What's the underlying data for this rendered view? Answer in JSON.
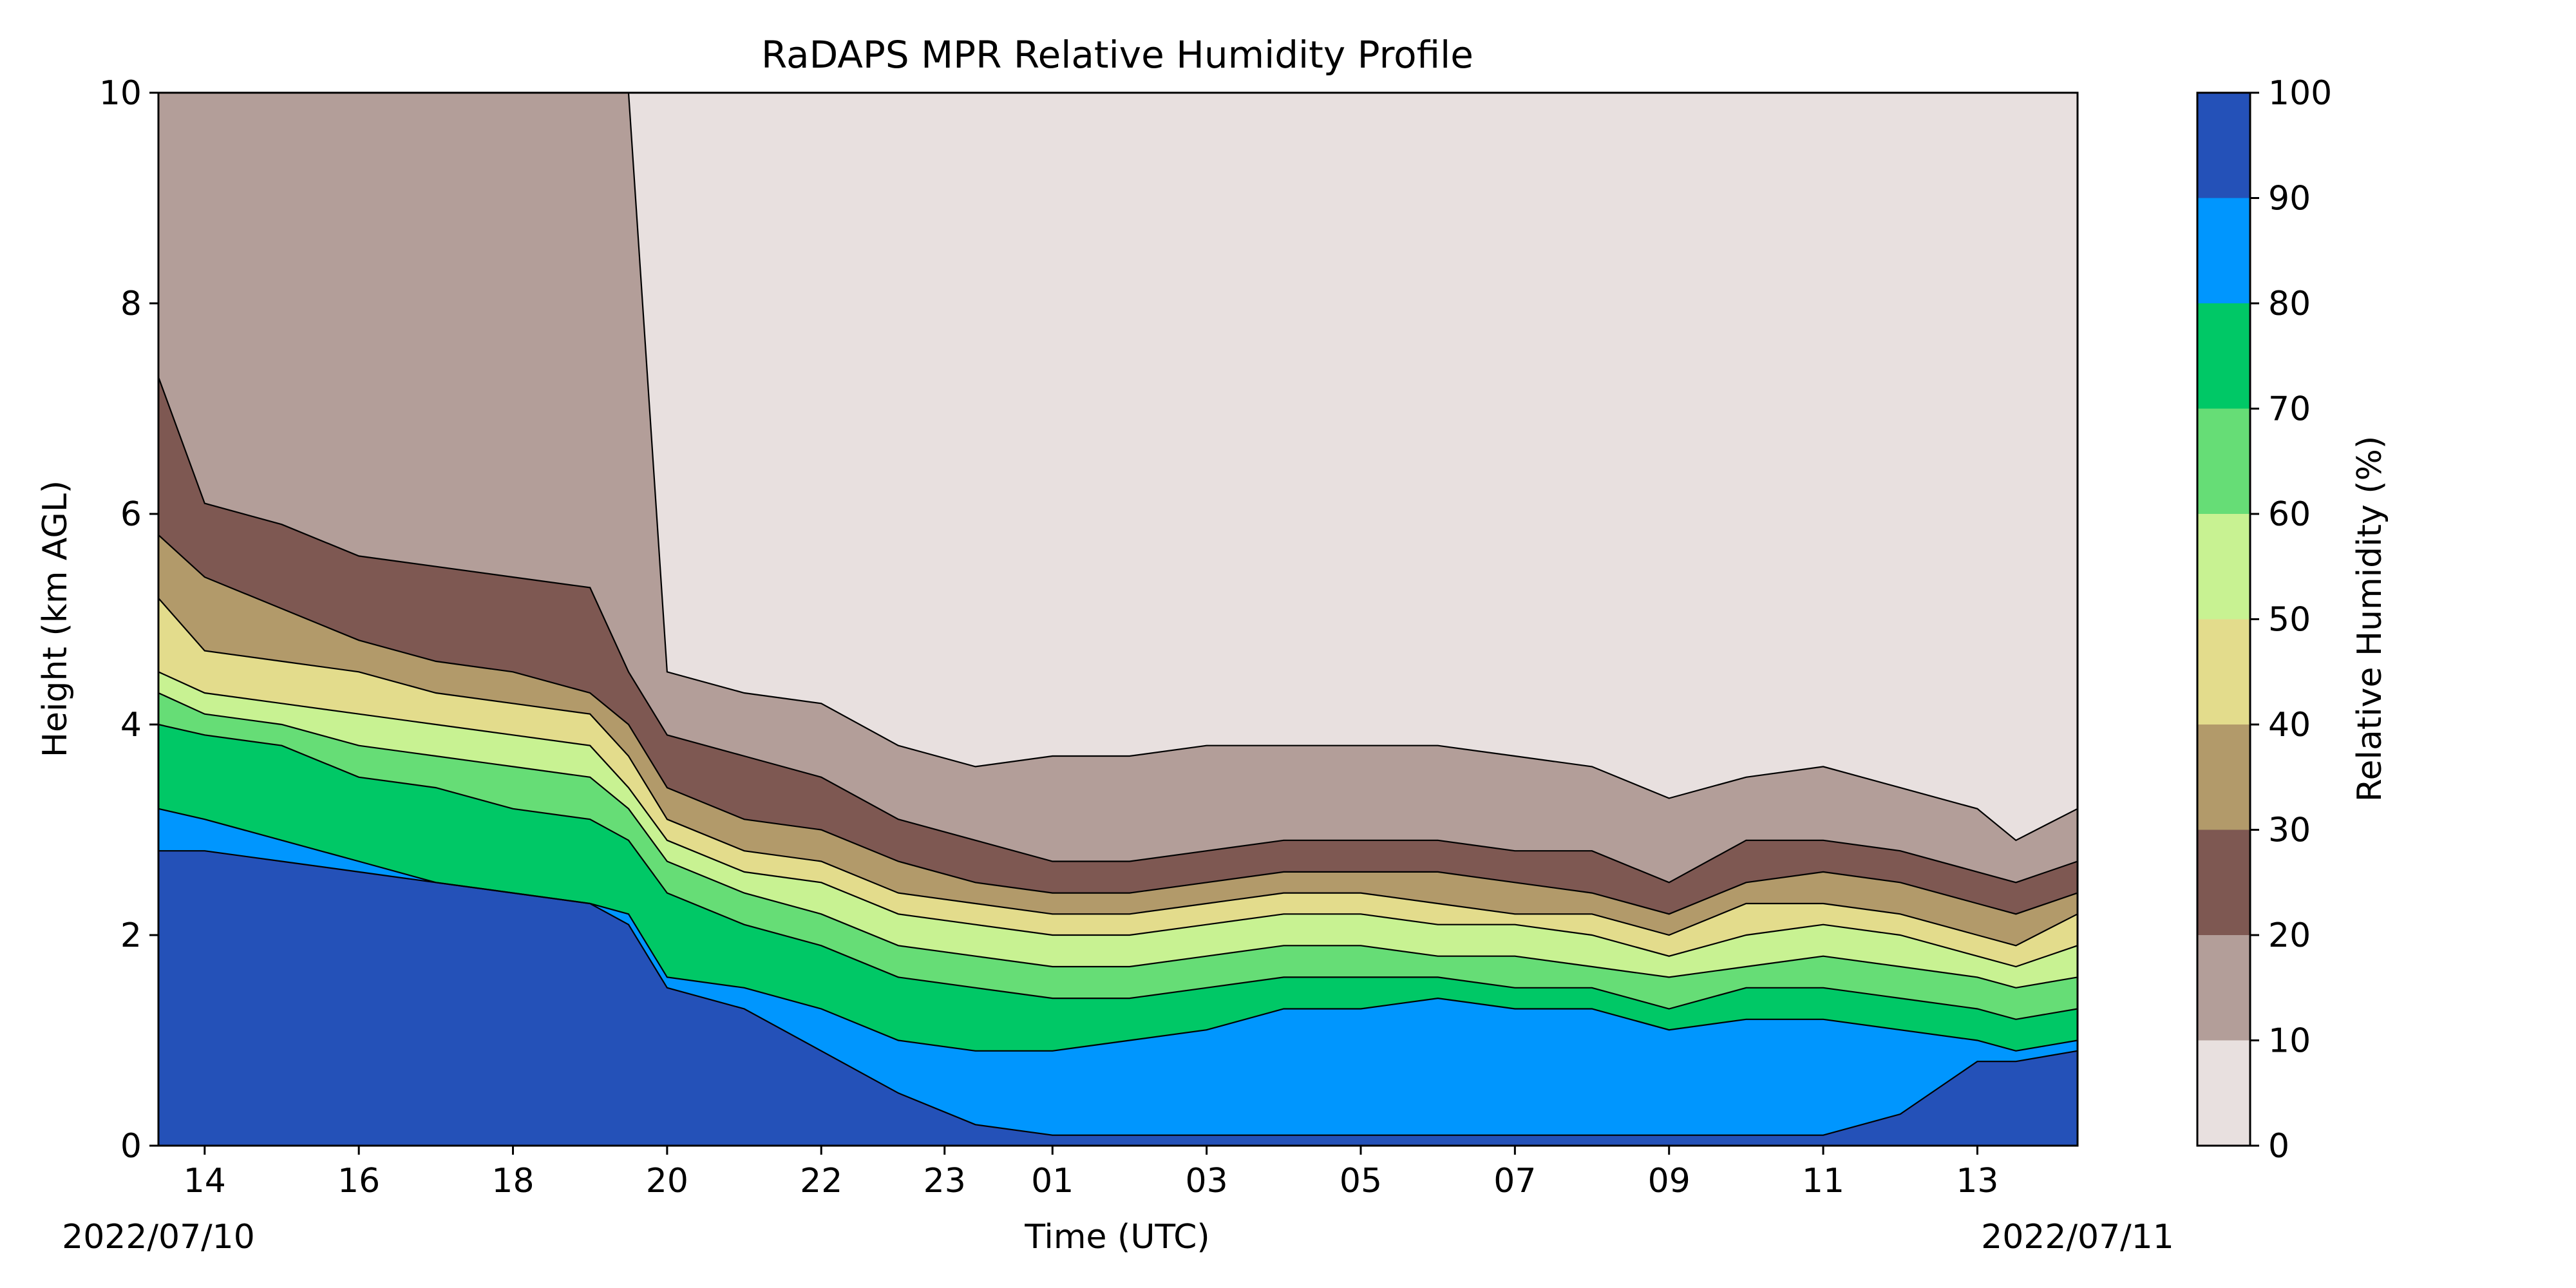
{
  "chart_data": {
    "type": "heatmap",
    "subtype": "filled-contour",
    "title": "RaDAPS MPR Relative Humidity Profile",
    "xlabel": "Time (UTC)",
    "ylabel": "Height (km AGL)",
    "ylim": [
      0,
      10
    ],
    "y_ticks": [
      "0",
      "2",
      "4",
      "6",
      "8",
      "10"
    ],
    "x_tick_labels": [
      "14",
      "16",
      "18",
      "20",
      "22",
      "23",
      "01",
      "03",
      "05",
      "07",
      "09",
      "11",
      "13"
    ],
    "x_tick_hours": [
      14,
      16,
      18,
      20,
      22,
      23.6,
      25,
      27,
      29,
      31,
      33,
      35,
      37
    ],
    "x_range_hours": [
      13.4,
      38.3
    ],
    "start_date_label": "2022/07/10",
    "end_date_label": "2022/07/11",
    "colorbar": {
      "label": "Relative Humidity (%)",
      "levels": [
        0,
        10,
        20,
        30,
        40,
        50,
        60,
        70,
        80,
        90,
        100
      ],
      "tick_labels": [
        "0",
        "10",
        "20",
        "30",
        "40",
        "50",
        "60",
        "70",
        "80",
        "90",
        "100"
      ],
      "colors": [
        "#e8e0df",
        "#b39e99",
        "#7e5852",
        "#b29a6a",
        "#e3dc8c",
        "#c8f292",
        "#66dd76",
        "#00c866",
        "#0096fe",
        "#2451b8"
      ]
    },
    "grid": false,
    "contour_times": [
      13.4,
      14.0,
      15.0,
      16.0,
      17.0,
      18.0,
      19.0,
      19.5,
      20.0,
      21.0,
      22.0,
      23.0,
      24.0,
      25.0,
      26.0,
      27.0,
      28.0,
      29.0,
      30.0,
      31.0,
      32.0,
      33.0,
      34.0,
      35.0,
      36.0,
      37.0,
      37.5,
      38.3
    ],
    "contour_heights_km": [
      {
        "level": 10,
        "values": [
          10,
          10,
          10,
          10,
          10,
          10,
          10,
          10,
          4.5,
          4.3,
          4.2,
          3.8,
          3.6,
          3.7,
          3.7,
          3.8,
          3.8,
          3.8,
          3.8,
          3.7,
          3.6,
          3.3,
          3.5,
          3.6,
          3.4,
          3.2,
          2.9,
          3.2
        ]
      },
      {
        "level": 20,
        "values": [
          7.3,
          6.1,
          5.9,
          5.6,
          5.5,
          5.4,
          5.3,
          4.5,
          3.9,
          3.7,
          3.5,
          3.1,
          2.9,
          2.7,
          2.7,
          2.8,
          2.9,
          2.9,
          2.9,
          2.8,
          2.8,
          2.5,
          2.9,
          2.9,
          2.8,
          2.6,
          2.5,
          2.7
        ]
      },
      {
        "level": 30,
        "values": [
          5.8,
          5.4,
          5.1,
          4.8,
          4.6,
          4.5,
          4.3,
          4.0,
          3.4,
          3.1,
          3.0,
          2.7,
          2.5,
          2.4,
          2.4,
          2.5,
          2.6,
          2.6,
          2.6,
          2.5,
          2.4,
          2.2,
          2.5,
          2.6,
          2.5,
          2.3,
          2.2,
          2.4
        ]
      },
      {
        "level": 40,
        "values": [
          5.2,
          4.7,
          4.6,
          4.5,
          4.3,
          4.2,
          4.1,
          3.7,
          3.1,
          2.8,
          2.7,
          2.4,
          2.3,
          2.2,
          2.2,
          2.3,
          2.4,
          2.4,
          2.3,
          2.2,
          2.2,
          2.0,
          2.3,
          2.3,
          2.2,
          2.0,
          1.9,
          2.2
        ]
      },
      {
        "level": 50,
        "values": [
          4.5,
          4.3,
          4.2,
          4.1,
          4.0,
          3.9,
          3.8,
          3.4,
          2.9,
          2.6,
          2.5,
          2.2,
          2.1,
          2.0,
          2.0,
          2.1,
          2.2,
          2.2,
          2.1,
          2.1,
          2.0,
          1.8,
          2.0,
          2.1,
          2.0,
          1.8,
          1.7,
          1.9
        ]
      },
      {
        "level": 60,
        "values": [
          4.3,
          4.1,
          4.0,
          3.8,
          3.7,
          3.6,
          3.5,
          3.2,
          2.7,
          2.4,
          2.2,
          1.9,
          1.8,
          1.7,
          1.7,
          1.8,
          1.9,
          1.9,
          1.8,
          1.8,
          1.7,
          1.6,
          1.7,
          1.8,
          1.7,
          1.6,
          1.5,
          1.6
        ]
      },
      {
        "level": 70,
        "values": [
          4.0,
          3.9,
          3.8,
          3.5,
          3.4,
          3.2,
          3.1,
          2.9,
          2.4,
          2.1,
          1.9,
          1.6,
          1.5,
          1.4,
          1.4,
          1.5,
          1.6,
          1.6,
          1.6,
          1.5,
          1.5,
          1.3,
          1.5,
          1.5,
          1.4,
          1.3,
          1.2,
          1.3
        ]
      },
      {
        "level": 80,
        "values": [
          3.2,
          3.1,
          2.9,
          2.7,
          2.5,
          2.4,
          2.3,
          2.2,
          1.6,
          1.5,
          1.3,
          1.0,
          0.9,
          0.9,
          1.0,
          1.1,
          1.3,
          1.3,
          1.4,
          1.3,
          1.3,
          1.1,
          1.2,
          1.2,
          1.1,
          1.0,
          0.9,
          1.0
        ]
      },
      {
        "level": 90,
        "values": [
          2.8,
          2.8,
          2.7,
          2.6,
          2.5,
          2.4,
          2.3,
          2.1,
          1.5,
          1.3,
          0.9,
          0.5,
          0.2,
          0.1,
          0.1,
          0.1,
          0.1,
          0.1,
          0.1,
          0.1,
          0.1,
          0.1,
          0.1,
          0.1,
          0.3,
          0.8,
          0.8,
          0.9
        ]
      }
    ]
  }
}
